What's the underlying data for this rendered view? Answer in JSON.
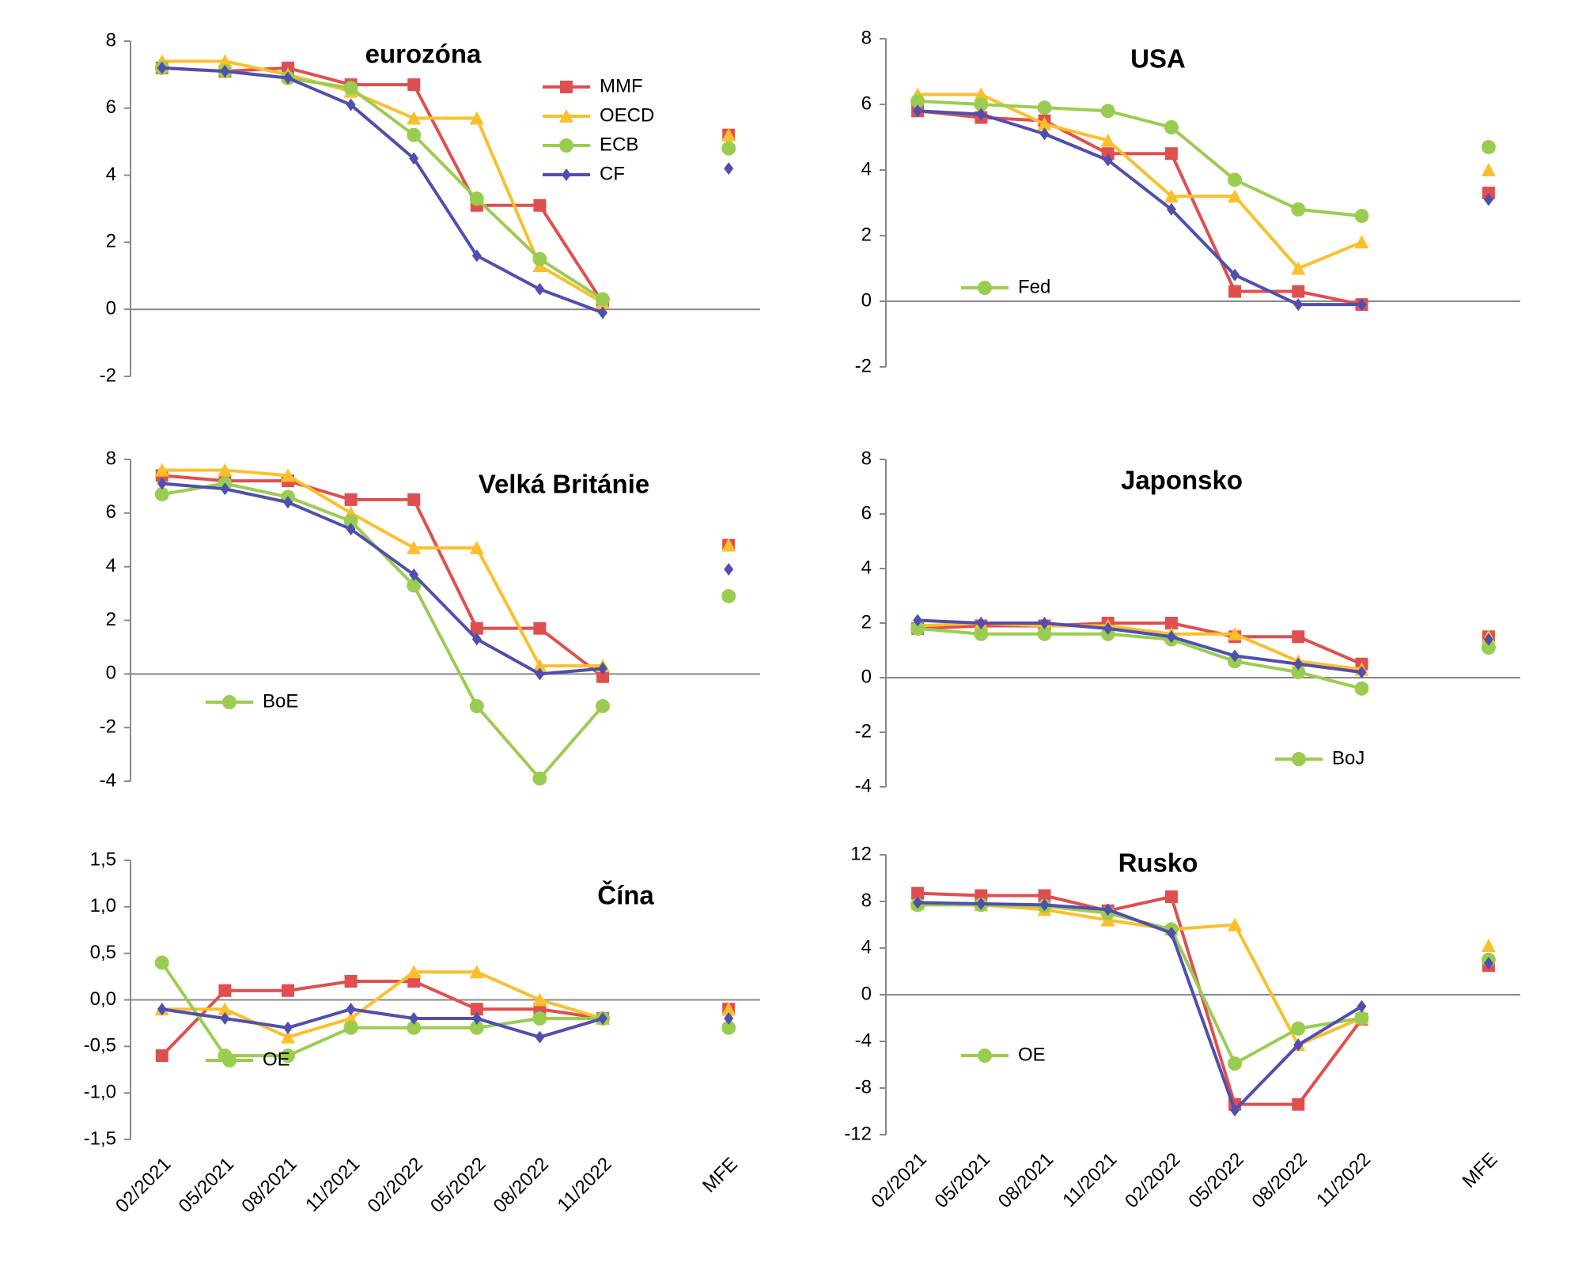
{
  "chart_data": [
    {
      "type": "line",
      "title": "eurozóna",
      "legend": "upper right",
      "ylim": [
        -2,
        8
      ],
      "yticks": [
        -2,
        0,
        2,
        4,
        6,
        8
      ],
      "series": [
        {
          "name": "MMF",
          "color": "#e04f4f",
          "marker": "square",
          "values": [
            7.2,
            7.1,
            7.2,
            6.7,
            6.7,
            3.1,
            3.1,
            0.2,
            null,
            5.2
          ]
        },
        {
          "name": "OECD",
          "color": "#fbbf2c",
          "marker": "triangle",
          "values": [
            7.4,
            7.4,
            7.0,
            6.5,
            5.7,
            5.7,
            1.3,
            0.2,
            null,
            5.2
          ]
        },
        {
          "name": "ECB",
          "color": "#9acd4f",
          "marker": "circle",
          "values": [
            7.2,
            7.1,
            6.9,
            6.6,
            5.2,
            3.3,
            1.5,
            0.3,
            null,
            4.8
          ]
        },
        {
          "name": "CF",
          "color": "#4f4fb0",
          "marker": "diamond",
          "values": [
            7.2,
            7.1,
            6.9,
            6.1,
            4.5,
            1.6,
            0.6,
            -0.1,
            null,
            4.2
          ]
        }
      ]
    },
    {
      "type": "line",
      "title": "USA",
      "legend": "lower left",
      "ylim": [
        -2,
        8
      ],
      "yticks": [
        -2,
        0,
        2,
        4,
        6,
        8
      ],
      "series": [
        {
          "color": "#e04f4f",
          "marker": "square",
          "values": [
            5.8,
            5.6,
            5.5,
            4.5,
            4.5,
            0.3,
            0.3,
            -0.1,
            null,
            3.3
          ]
        },
        {
          "color": "#fbbf2c",
          "marker": "triangle",
          "values": [
            6.3,
            6.3,
            5.4,
            4.9,
            3.2,
            3.2,
            1.0,
            1.8,
            null,
            4.0
          ]
        },
        {
          "name": "Fed",
          "color": "#9acd4f",
          "marker": "circle",
          "values": [
            6.1,
            6.0,
            5.9,
            5.8,
            5.3,
            3.7,
            2.8,
            2.6,
            null,
            4.7
          ]
        },
        {
          "color": "#4f4fb0",
          "marker": "diamond",
          "values": [
            5.8,
            5.7,
            5.1,
            4.3,
            2.8,
            0.8,
            -0.1,
            -0.1,
            null,
            3.1
          ]
        }
      ]
    },
    {
      "type": "line",
      "title": "Velká Británie",
      "legend": "lower left",
      "ylim": [
        -4,
        8
      ],
      "yticks": [
        -4,
        -2,
        0,
        2,
        4,
        6,
        8
      ],
      "series": [
        {
          "color": "#e04f4f",
          "marker": "square",
          "values": [
            7.4,
            7.2,
            7.2,
            6.5,
            6.5,
            1.7,
            1.7,
            -0.1,
            null,
            4.8
          ]
        },
        {
          "color": "#fbbf2c",
          "marker": "triangle",
          "values": [
            7.6,
            7.6,
            7.4,
            6.0,
            4.7,
            4.7,
            0.3,
            0.3,
            null,
            4.8
          ]
        },
        {
          "name": "BoE",
          "color": "#9acd4f",
          "marker": "circle",
          "values": [
            6.7,
            7.1,
            6.6,
            5.7,
            3.3,
            -1.2,
            -3.9,
            -1.2,
            null,
            2.9
          ]
        },
        {
          "color": "#4f4fb0",
          "marker": "diamond",
          "values": [
            7.1,
            6.9,
            6.4,
            5.4,
            3.7,
            1.3,
            0.0,
            0.2,
            null,
            3.9
          ]
        }
      ]
    },
    {
      "type": "line",
      "title": "Japonsko",
      "legend": "lower right",
      "ylim": [
        -4,
        8
      ],
      "yticks": [
        -4,
        -2,
        0,
        2,
        4,
        6,
        8
      ],
      "series": [
        {
          "color": "#e04f4f",
          "marker": "square",
          "values": [
            1.8,
            1.9,
            1.9,
            2.0,
            2.0,
            1.5,
            1.5,
            0.5,
            null,
            1.5
          ]
        },
        {
          "color": "#fbbf2c",
          "marker": "triangle",
          "values": [
            1.9,
            2.0,
            1.9,
            1.9,
            1.6,
            1.6,
            0.6,
            0.3,
            null,
            1.5
          ]
        },
        {
          "name": "BoJ",
          "color": "#9acd4f",
          "marker": "circle",
          "values": [
            1.8,
            1.6,
            1.6,
            1.6,
            1.4,
            0.6,
            0.2,
            -0.4,
            null,
            1.1
          ]
        },
        {
          "color": "#4f4fb0",
          "marker": "diamond",
          "values": [
            2.1,
            2.0,
            2.0,
            1.8,
            1.5,
            0.8,
            0.5,
            0.2,
            null,
            1.4
          ]
        }
      ]
    },
    {
      "type": "line",
      "title": "Čína",
      "legend": "lower left",
      "ylim": [
        -1.5,
        1.5
      ],
      "yticks": [
        {
          "value": -1.5,
          "label": "-1,5"
        },
        {
          "value": -1.0,
          "label": "-1,0"
        },
        {
          "value": -0.5,
          "label": "-0,5"
        },
        {
          "value": 0,
          "label": "0,0"
        },
        {
          "value": 0.5,
          "label": "0,5"
        },
        {
          "value": 1.0,
          "label": "1,0"
        },
        {
          "value": 1.5,
          "label": "1,5"
        }
      ],
      "categories": [
        "02/2021",
        "05/2021",
        "08/2021",
        "11/2021",
        "02/2022",
        "05/2022",
        "08/2022",
        "11/2022",
        null,
        "MFE"
      ],
      "series": [
        {
          "color": "#e04f4f",
          "marker": "square",
          "values": [
            -0.6,
            0.1,
            0.1,
            0.2,
            0.2,
            -0.1,
            -0.1,
            -0.2,
            null,
            -0.1
          ]
        },
        {
          "color": "#fbbf2c",
          "marker": "triangle",
          "values": [
            -0.1,
            -0.1,
            -0.4,
            -0.2,
            0.3,
            0.3,
            0.0,
            -0.2,
            null,
            -0.1
          ]
        },
        {
          "name": "OE",
          "color": "#9acd4f",
          "marker": "circle",
          "values": [
            0.4,
            -0.6,
            -0.6,
            -0.3,
            -0.3,
            -0.3,
            -0.2,
            -0.2,
            null,
            -0.3
          ]
        },
        {
          "color": "#4f4fb0",
          "marker": "diamond",
          "values": [
            -0.1,
            -0.2,
            -0.3,
            -0.1,
            -0.2,
            -0.2,
            -0.4,
            -0.2,
            null,
            -0.2
          ]
        }
      ]
    },
    {
      "type": "line",
      "title": "Rusko",
      "legend": "lower left",
      "ylim": [
        -12,
        12
      ],
      "yticks": [
        -12,
        -8,
        -4,
        0,
        4,
        8,
        12
      ],
      "categories": [
        "02/2021",
        "05/2021",
        "08/2021",
        "11/2021",
        "02/2022",
        "05/2022",
        "08/2022",
        "11/2022",
        null,
        "MFE"
      ],
      "series": [
        {
          "color": "#e04f4f",
          "marker": "square",
          "values": [
            8.7,
            8.5,
            8.5,
            7.2,
            8.4,
            -9.4,
            -9.4,
            -2.1,
            null,
            2.5
          ]
        },
        {
          "color": "#fbbf2c",
          "marker": "triangle",
          "values": [
            7.8,
            7.7,
            7.3,
            6.4,
            5.6,
            6.0,
            -4.3,
            -2.0,
            null,
            4.2
          ]
        },
        {
          "name": "OE",
          "color": "#9acd4f",
          "marker": "circle",
          "values": [
            7.7,
            7.7,
            7.6,
            7.0,
            5.6,
            -5.9,
            -2.9,
            -2.0,
            null,
            3.0
          ]
        },
        {
          "color": "#4f4fb0",
          "marker": "diamond",
          "values": [
            7.9,
            7.8,
            7.7,
            7.3,
            5.3,
            -9.9,
            -4.3,
            -1.0,
            null,
            2.7
          ]
        }
      ]
    }
  ]
}
